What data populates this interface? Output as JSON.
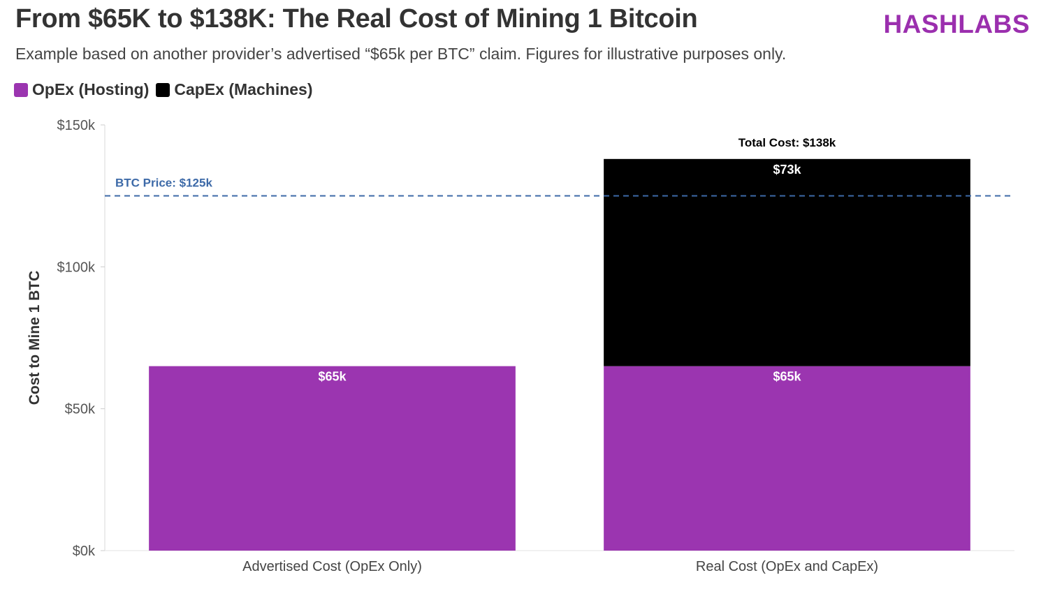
{
  "header": {
    "title": "From $65K to $138K: The Real Cost of Mining 1 Bitcoin",
    "brand": "HASHLABS",
    "subtitle": "Example based on another provider’s advertised “$65k per BTC” claim. Figures for illustrative purposes only."
  },
  "colors": {
    "opex": "#9b35b0",
    "capex": "#000000",
    "reference": "#3d6aa8",
    "brand": "#9b2fae"
  },
  "chart_data": {
    "type": "bar",
    "stacked": true,
    "categories": [
      "Advertised Cost (OpEx Only)",
      "Real Cost (OpEx and CapEx)"
    ],
    "series": [
      {
        "name": "OpEx (Hosting)",
        "values": [
          65,
          65
        ],
        "labels": [
          "$65k",
          "$65k"
        ],
        "color": "#9b35b0"
      },
      {
        "name": "CapEx (Machines)",
        "values": [
          0,
          73
        ],
        "labels": [
          "",
          "$73k"
        ],
        "color": "#000000"
      }
    ],
    "totals": [
      null,
      "Total Cost: $138k"
    ],
    "reference_line": {
      "value": 125,
      "label": "BTC Price: $125k"
    },
    "ylabel": "Cost to Mine 1 BTC",
    "xlabel": "",
    "ylim": [
      0,
      150
    ],
    "yticks": [
      0,
      50,
      100,
      150
    ],
    "ytick_labels": [
      "$0k",
      "$50k",
      "$100k",
      "$150k"
    ],
    "legend_position": "top-left",
    "grid": false
  }
}
